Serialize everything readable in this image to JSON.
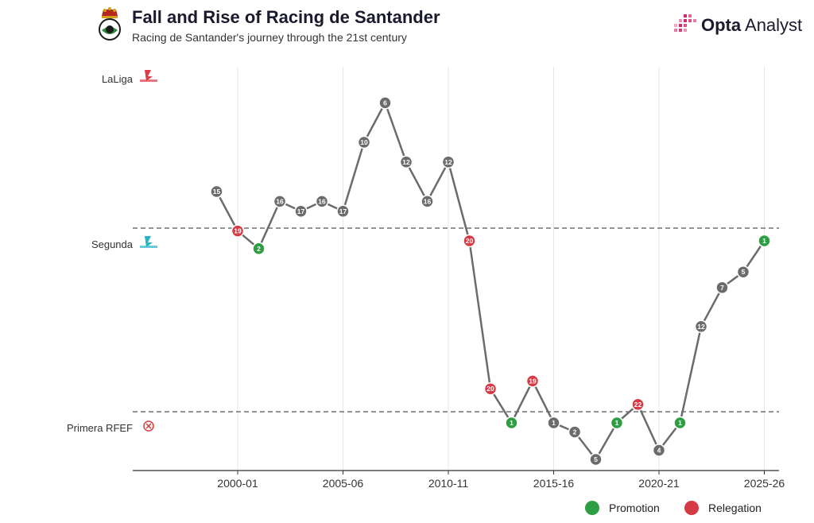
{
  "header": {
    "title": "Fall and Rise of Racing de Santander",
    "subtitle": "Racing de Santander's journey through the 21st century"
  },
  "brand": {
    "name_bold": "Opta",
    "name_rest": " Analyst"
  },
  "tiers": {
    "laliga": "LaLiga",
    "segunda": "Segunda",
    "primera_rfef": "Primera RFEF"
  },
  "legend": {
    "promotion": "Promotion",
    "relegation": "Relegation"
  },
  "colors": {
    "line": "#6b6b6b",
    "neutral": "#6b6b6b",
    "promotion": "#2e9e44",
    "relegation": "#d63a45",
    "laliga_logo": "#e0394a",
    "segunda_logo": "#2ab3c6",
    "rfef_logo": "#d63a45",
    "brand_accent": "#d6246e"
  },
  "chart_data": {
    "type": "line",
    "title": "Fall and Rise of Racing de Santander",
    "subtitle": "Racing de Santander's journey through the 21st century",
    "x_tick_labels": [
      "2000-01",
      "2005-06",
      "2010-11",
      "2015-16",
      "2020-21",
      "2025-26"
    ],
    "y_categories": [
      "LaLiga",
      "Segunda",
      "Primera RFEF"
    ],
    "grid": "vertical",
    "legend_position": "bottom-right",
    "series": [
      {
        "seasons": [
          "1999-00",
          "2000-01",
          "2001-02",
          "2002-03",
          "2003-04",
          "2004-05",
          "2005-06",
          "2006-07",
          "2007-08",
          "2008-09",
          "2009-10",
          "2010-11",
          "2011-12",
          "2012-13",
          "2013-14",
          "2014-15",
          "2015-16",
          "2016-17",
          "2017-18",
          "2018-19",
          "2019-20",
          "2020-21",
          "2021-22",
          "2022-23",
          "2023-24",
          "2024-25",
          "2025-26"
        ],
        "tier": [
          "LaLiga",
          "LaLiga",
          "Segunda",
          "LaLiga",
          "LaLiga",
          "LaLiga",
          "LaLiga",
          "LaLiga",
          "LaLiga",
          "LaLiga",
          "LaLiga",
          "LaLiga",
          "LaLiga",
          "Segunda",
          "Primera RFEF",
          "Segunda",
          "Primera RFEF",
          "Primera RFEF",
          "Primera RFEF",
          "Primera RFEF",
          "Segunda",
          "Primera RFEF",
          "Primera RFEF",
          "Segunda",
          "Segunda",
          "Segunda",
          "Segunda"
        ],
        "position": [
          15,
          19,
          2,
          16,
          17,
          16,
          17,
          10,
          6,
          12,
          16,
          12,
          20,
          20,
          1,
          19,
          1,
          2,
          5,
          1,
          22,
          4,
          1,
          12,
          7,
          5,
          1
        ],
        "status": [
          "none",
          "relegation",
          "promotion",
          "none",
          "none",
          "none",
          "none",
          "none",
          "none",
          "none",
          "none",
          "none",
          "relegation",
          "relegation",
          "promotion",
          "relegation",
          "none",
          "none",
          "none",
          "promotion",
          "relegation",
          "none",
          "promotion",
          "none",
          "none",
          "none",
          "promotion"
        ]
      }
    ]
  }
}
